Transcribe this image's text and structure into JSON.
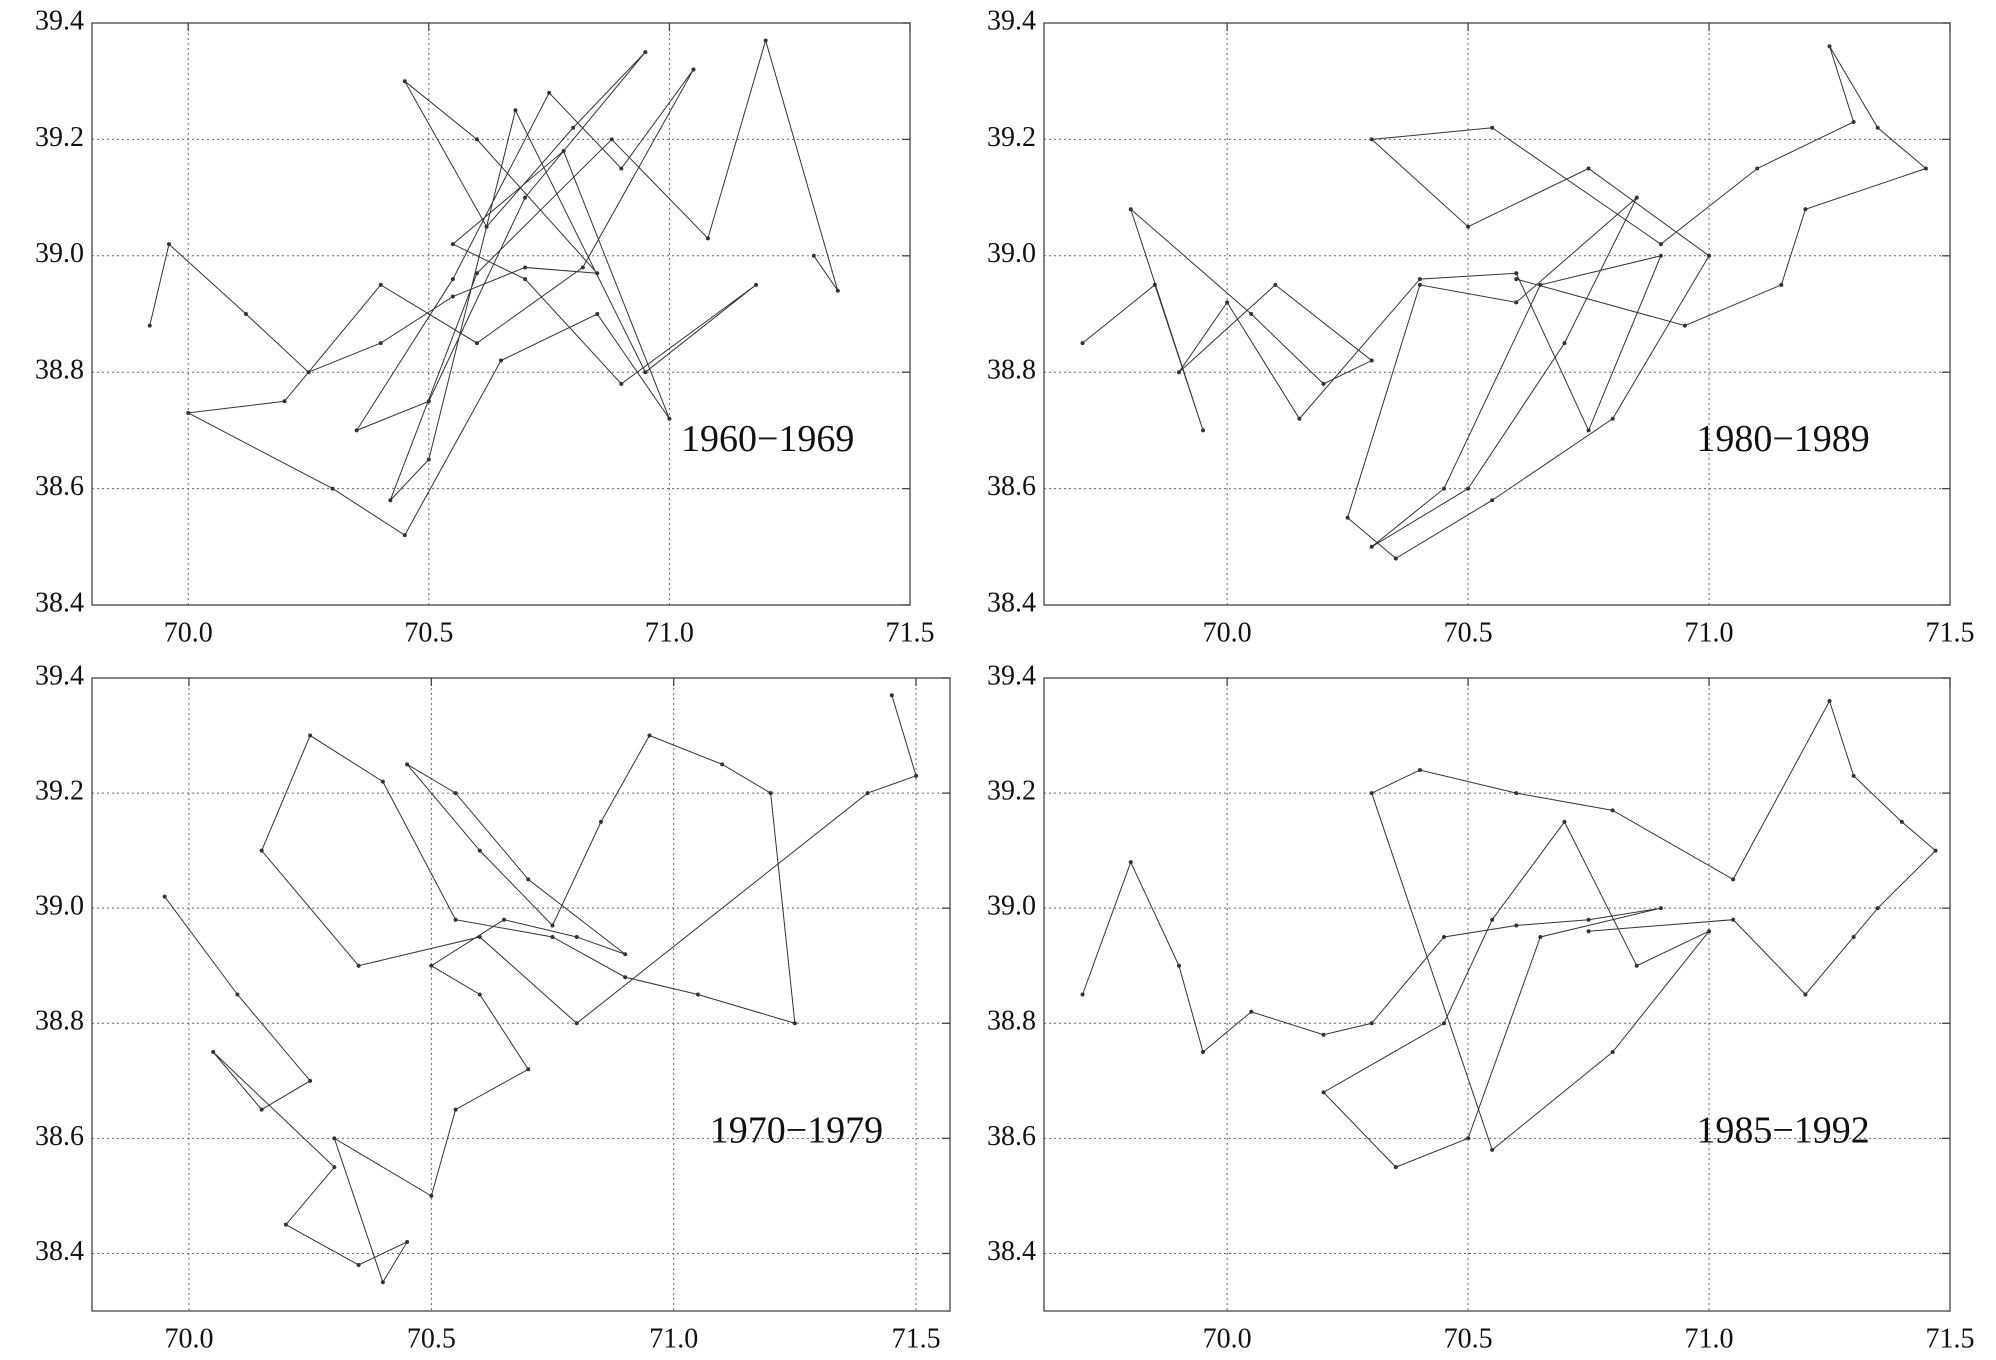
{
  "chart_data": [
    {
      "type": "line",
      "annotation": "1960−1969",
      "color": "#333333",
      "grid": true,
      "xlim": [
        69.8,
        71.5
      ],
      "ylim": [
        38.4,
        39.4
      ],
      "xticks": [
        {
          "value": 70,
          "label": "70.0"
        },
        70.5,
        {
          "value": 71,
          "label": "71.0"
        },
        71.5
      ],
      "yticks": [
        39.4,
        39.2,
        {
          "value": 39,
          "label": "39.0"
        },
        38.8,
        38.6,
        38.4
      ],
      "x": [
        69.92,
        69.96,
        70.12,
        70.25,
        70.4,
        70.55,
        70.7,
        70.85,
        70.6,
        70.45,
        70.62,
        70.8,
        70.95,
        70.7,
        70.5,
        70.35,
        70.55,
        70.75,
        70.9,
        71.05,
        70.82,
        70.6,
        70.4,
        70.2,
        70.0,
        70.3,
        70.45,
        70.65,
        70.85,
        71.0,
        70.78,
        70.55,
        70.7,
        70.9,
        71.18,
        70.95,
        70.68,
        70.5,
        70.42,
        70.6,
        70.88,
        71.08,
        71.2,
        71.35,
        71.3
      ],
      "values": [
        38.88,
        39.02,
        38.9,
        38.8,
        38.85,
        38.93,
        38.98,
        38.97,
        39.2,
        39.3,
        39.05,
        39.22,
        39.35,
        39.1,
        38.75,
        38.7,
        38.96,
        39.28,
        39.15,
        39.32,
        38.98,
        38.85,
        38.95,
        38.75,
        38.73,
        38.6,
        38.52,
        38.82,
        38.9,
        38.72,
        39.18,
        39.02,
        38.96,
        38.78,
        38.95,
        38.8,
        39.25,
        38.65,
        38.58,
        38.97,
        39.2,
        39.03,
        39.37,
        38.94,
        39.0
      ]
    },
    {
      "type": "line",
      "annotation": "1980−1989",
      "color": "#333333",
      "grid": true,
      "xlim": [
        69.62,
        71.5
      ],
      "ylim": [
        38.4,
        39.4
      ],
      "xticks": [
        {
          "value": 70,
          "label": "70.0"
        },
        70.5,
        {
          "value": 71,
          "label": "71.0"
        },
        71.5
      ],
      "yticks": [
        39.4,
        39.2,
        {
          "value": 39,
          "label": "39.0"
        },
        38.8,
        38.6,
        38.4
      ],
      "x": [
        69.7,
        69.85,
        69.95,
        69.8,
        70.05,
        70.2,
        70.3,
        70.1,
        69.9,
        70.0,
        70.15,
        70.4,
        70.6,
        70.75,
        70.9,
        70.65,
        70.45,
        70.3,
        70.5,
        70.7,
        70.85,
        70.6,
        70.4,
        70.25,
        70.35,
        70.55,
        70.8,
        71.0,
        70.75,
        70.5,
        70.3,
        70.55,
        70.9,
        71.1,
        71.3,
        71.25,
        71.35,
        71.45,
        71.2,
        71.15,
        70.95,
        70.6
      ],
      "values": [
        38.85,
        38.95,
        38.7,
        39.08,
        38.9,
        38.78,
        38.82,
        38.95,
        38.8,
        38.92,
        38.72,
        38.96,
        38.97,
        38.7,
        39.0,
        38.95,
        38.6,
        38.5,
        38.6,
        38.85,
        39.1,
        38.92,
        38.95,
        38.55,
        38.48,
        38.58,
        38.72,
        39.0,
        39.15,
        39.05,
        39.2,
        39.22,
        39.02,
        39.15,
        39.23,
        39.36,
        39.22,
        39.15,
        39.08,
        38.95,
        38.88,
        38.96
      ]
    },
    {
      "type": "line",
      "annotation": "1970−1979",
      "color": "#333333",
      "grid": true,
      "xlim": [
        69.8,
        71.57
      ],
      "ylim": [
        38.3,
        39.4
      ],
      "xticks": [
        {
          "value": 70,
          "label": "70.0"
        },
        70.5,
        {
          "value": 71,
          "label": "71.0"
        },
        71.5
      ],
      "yticks": [
        39.4,
        39.2,
        {
          "value": 39,
          "label": "39.0"
        },
        38.8,
        38.6,
        38.4
      ],
      "x": [
        69.95,
        70.1,
        70.25,
        70.15,
        70.05,
        70.3,
        70.2,
        70.35,
        70.45,
        70.4,
        70.3,
        70.5,
        70.55,
        70.7,
        70.6,
        70.5,
        70.65,
        70.8,
        70.9,
        70.7,
        70.55,
        70.45,
        70.6,
        70.75,
        70.85,
        70.95,
        71.1,
        71.2,
        71.25,
        71.05,
        70.9,
        70.75,
        70.55,
        70.4,
        70.25,
        70.15,
        70.35,
        70.6,
        70.8,
        71.4,
        71.5,
        71.45
      ],
      "values": [
        39.02,
        38.85,
        38.7,
        38.65,
        38.75,
        38.55,
        38.45,
        38.38,
        38.42,
        38.35,
        38.6,
        38.5,
        38.65,
        38.72,
        38.85,
        38.9,
        38.98,
        38.95,
        38.92,
        39.05,
        39.2,
        39.25,
        39.1,
        38.97,
        39.15,
        39.3,
        39.25,
        39.2,
        38.8,
        38.85,
        38.88,
        38.95,
        38.98,
        39.22,
        39.3,
        39.1,
        38.9,
        38.95,
        38.8,
        39.2,
        39.23,
        39.37
      ]
    },
    {
      "type": "line",
      "annotation": "1985−1992",
      "color": "#333333",
      "grid": true,
      "xlim": [
        69.62,
        71.5
      ],
      "ylim": [
        38.3,
        39.4
      ],
      "xticks": [
        {
          "value": 70,
          "label": "70.0"
        },
        70.5,
        {
          "value": 71,
          "label": "71.0"
        },
        71.5
      ],
      "yticks": [
        39.4,
        39.2,
        {
          "value": 39,
          "label": "39.0"
        },
        38.8,
        38.6,
        38.4
      ],
      "x": [
        69.7,
        69.8,
        69.9,
        69.95,
        70.05,
        70.2,
        70.3,
        70.45,
        70.6,
        70.75,
        70.9,
        70.65,
        70.5,
        70.35,
        70.2,
        70.45,
        70.55,
        70.7,
        70.85,
        71.0,
        70.8,
        70.55,
        70.3,
        70.4,
        70.6,
        70.8,
        71.05,
        71.25,
        71.3,
        71.4,
        71.47,
        71.35,
        71.3,
        71.2,
        71.05,
        70.75
      ],
      "values": [
        38.85,
        39.08,
        38.9,
        38.75,
        38.82,
        38.78,
        38.8,
        38.95,
        38.97,
        38.98,
        39.0,
        38.95,
        38.6,
        38.55,
        38.68,
        38.8,
        38.98,
        39.15,
        38.9,
        38.96,
        38.75,
        38.58,
        39.2,
        39.24,
        39.2,
        39.17,
        39.05,
        39.36,
        39.23,
        39.15,
        39.1,
        39.0,
        38.95,
        38.85,
        38.98,
        38.96
      ]
    }
  ]
}
